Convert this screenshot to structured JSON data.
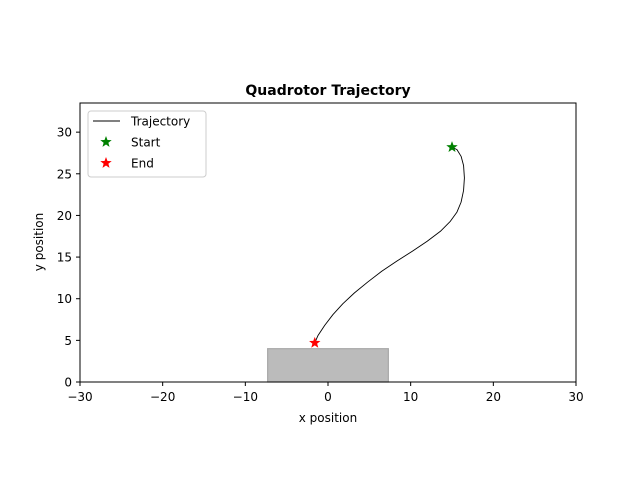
{
  "chart_data": {
    "type": "line",
    "title": "Quadrotor Trajectory",
    "xlabel": "x position",
    "ylabel": "y position",
    "xlim": [
      -30,
      30
    ],
    "ylim": [
      0,
      33.5
    ],
    "xticks": [
      -30,
      -20,
      -10,
      0,
      10,
      20,
      30
    ],
    "yticks": [
      0,
      5,
      10,
      15,
      20,
      25,
      30
    ],
    "x_tick_labels": [
      "−30",
      "−20",
      "−10",
      "0",
      "10",
      "20",
      "30"
    ],
    "y_tick_labels": [
      "0",
      "5",
      "10",
      "15",
      "20",
      "25",
      "30"
    ],
    "grid": false,
    "legend_position": "upper-left",
    "series": [
      {
        "name": "Trajectory",
        "color": "#000000",
        "style": "solid line",
        "x": [
          15.0,
          15.6,
          16.1,
          16.4,
          16.5,
          16.4,
          16.1,
          15.6,
          14.8,
          13.6,
          12.0,
          10.2,
          8.3,
          6.5,
          4.8,
          3.2,
          1.8,
          0.6,
          -0.4,
          -1.2,
          -1.6
        ],
        "y": [
          28.2,
          27.9,
          27.1,
          26.0,
          24.5,
          23.0,
          21.6,
          20.4,
          19.3,
          18.1,
          16.9,
          15.7,
          14.5,
          13.3,
          12.0,
          10.7,
          9.4,
          8.1,
          6.8,
          5.6,
          4.7
        ]
      },
      {
        "name": "Start",
        "color": "#008000",
        "marker": "star",
        "x": [
          15.0
        ],
        "y": [
          28.2
        ]
      },
      {
        "name": "End",
        "color": "#ff0000",
        "marker": "star",
        "x": [
          -1.6
        ],
        "y": [
          4.7
        ]
      }
    ],
    "obstacle": {
      "x_range": [
        -7.3,
        7.3
      ],
      "y_range": [
        0,
        4.0
      ],
      "color": "#bbbbbb"
    }
  }
}
